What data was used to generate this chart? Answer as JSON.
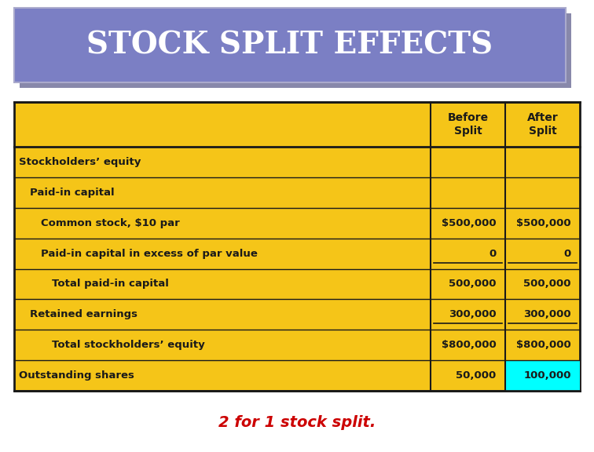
{
  "title": "STOCK SPLIT EFFECTS",
  "title_bg": "#7b7fc4",
  "title_shadow": "#8888aa",
  "title_color": "#ffffff",
  "table_bg": "#f5c518",
  "header_row": [
    "",
    "Before\nSplit",
    "After\nSplit"
  ],
  "rows": [
    {
      "label": "Stockholders’ equity",
      "indent": 0,
      "before": "",
      "after": "",
      "bold": true,
      "underline": false
    },
    {
      "label": "Paid-in capital",
      "indent": 1,
      "before": "",
      "after": "",
      "bold": true,
      "underline": false
    },
    {
      "label": "Common stock, $10 par",
      "indent": 2,
      "before": "$500,000",
      "after": "$500,000",
      "bold": true,
      "underline": false
    },
    {
      "label": "Paid-in capital in excess of par value",
      "indent": 2,
      "before": "0",
      "after": "0",
      "bold": true,
      "underline": true
    },
    {
      "label": "Total paid-in capital",
      "indent": 3,
      "before": "500,000",
      "after": "500,000",
      "bold": true,
      "underline": false
    },
    {
      "label": "Retained earnings",
      "indent": 1,
      "before": "300,000",
      "after": "300,000",
      "bold": true,
      "underline": true
    },
    {
      "label": "Total stockholders’ equity",
      "indent": 3,
      "before": "$800,000",
      "after": "$800,000",
      "bold": true,
      "underline": false
    },
    {
      "label": "Outstanding shares",
      "indent": 0,
      "before": "50,000",
      "after": "100,000",
      "bold": true,
      "underline": false,
      "highlight_after": true
    }
  ],
  "footer": "2 for 1 stock split.",
  "footer_color": "#cc0000",
  "highlight_color": "#00ffff",
  "border_color": "#1a1a1a",
  "text_color": "#1a1a1a",
  "fig_w": 7.56,
  "fig_h": 5.76,
  "dpi": 100
}
